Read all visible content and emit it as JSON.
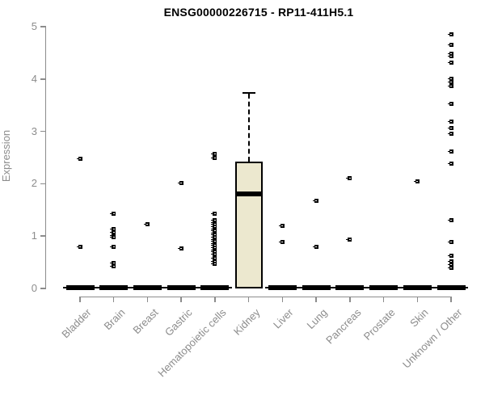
{
  "chart_data": {
    "type": "boxplot",
    "title": "ENSG00000226715 - RP11-411H5.1",
    "xlabel": "",
    "ylabel": "Expression",
    "ylim": [
      0,
      5
    ],
    "yticks": [
      0,
      1,
      2,
      3,
      4,
      5
    ],
    "grid": false,
    "legend": "none",
    "categories": [
      "Bladder",
      "Brain",
      "Breast",
      "Gastric",
      "Hematopoietic cells",
      "Kidney",
      "Liver",
      "Lung",
      "Pancreas",
      "Prostate",
      "Skin",
      "Unknown / Other"
    ],
    "series": [
      {
        "category": "Bladder",
        "box": {
          "q1": 0,
          "median": 0,
          "q3": 0,
          "whisker_low": 0,
          "whisker_high": 0
        },
        "outliers": [
          2.48,
          0.8
        ]
      },
      {
        "category": "Brain",
        "box": {
          "q1": 0,
          "median": 0,
          "q3": 0,
          "whisker_low": 0,
          "whisker_high": 0
        },
        "outliers": [
          1.42,
          1.14,
          1.07,
          1.01,
          0.98,
          0.8,
          0.49,
          0.43
        ]
      },
      {
        "category": "Breast",
        "box": {
          "q1": 0,
          "median": 0,
          "q3": 0,
          "whisker_low": 0,
          "whisker_high": 0
        },
        "outliers": [
          1.23
        ]
      },
      {
        "category": "Gastric",
        "box": {
          "q1": 0,
          "median": 0,
          "q3": 0,
          "whisker_low": 0,
          "whisker_high": 0
        },
        "outliers": [
          2.02,
          0.76
        ]
      },
      {
        "category": "Hematopoietic cells",
        "box": {
          "q1": 0,
          "median": 0,
          "q3": 0,
          "whisker_low": 0,
          "whisker_high": 0
        },
        "outliers": [
          2.57,
          2.5,
          1.42,
          1.3,
          1.26,
          1.22,
          1.18,
          1.14,
          1.1,
          1.06,
          1.02,
          0.98,
          0.94,
          0.9,
          0.86,
          0.82,
          0.78,
          0.74,
          0.7,
          0.66,
          0.58,
          0.52,
          0.47
        ]
      },
      {
        "category": "Kidney",
        "box": {
          "q1": 0,
          "median": 1.81,
          "q3": 2.42,
          "whisker_low": 0,
          "whisker_high": 3.73
        },
        "outliers": []
      },
      {
        "category": "Liver",
        "box": {
          "q1": 0,
          "median": 0,
          "q3": 0,
          "whisker_low": 0,
          "whisker_high": 0
        },
        "outliers": [
          1.2,
          0.88
        ]
      },
      {
        "category": "Lung",
        "box": {
          "q1": 0,
          "median": 0,
          "q3": 0,
          "whisker_low": 0,
          "whisker_high": 0
        },
        "outliers": [
          1.67,
          0.8
        ]
      },
      {
        "category": "Pancreas",
        "box": {
          "q1": 0,
          "median": 0,
          "q3": 0,
          "whisker_low": 0,
          "whisker_high": 0
        },
        "outliers": [
          2.1,
          0.94
        ]
      },
      {
        "category": "Prostate",
        "box": {
          "q1": 0,
          "median": 0,
          "q3": 0,
          "whisker_low": 0,
          "whisker_high": 0
        },
        "outliers": []
      },
      {
        "category": "Skin",
        "box": {
          "q1": 0,
          "median": 0,
          "q3": 0,
          "whisker_low": 0,
          "whisker_high": 0
        },
        "outliers": [
          2.05
        ]
      },
      {
        "category": "Unknown / Other",
        "box": {
          "q1": 0,
          "median": 0,
          "q3": 0,
          "whisker_low": 0,
          "whisker_high": 0
        },
        "outliers": [
          4.85,
          4.66,
          4.48,
          4.44,
          4.32,
          4.01,
          3.95,
          3.86,
          3.53,
          3.18,
          3.07,
          2.96,
          2.62,
          2.38,
          1.3,
          0.88,
          0.62,
          0.52,
          0.45,
          0.4
        ]
      }
    ],
    "colors": {
      "box_fill": "#ECE8CF",
      "box_border": "#000000",
      "median": "#000000",
      "outlier": "#000000",
      "axis": "#8C8C8C",
      "tick_label": "#8C8C8C",
      "title": "#000000",
      "background": "#FFFFFF"
    }
  }
}
